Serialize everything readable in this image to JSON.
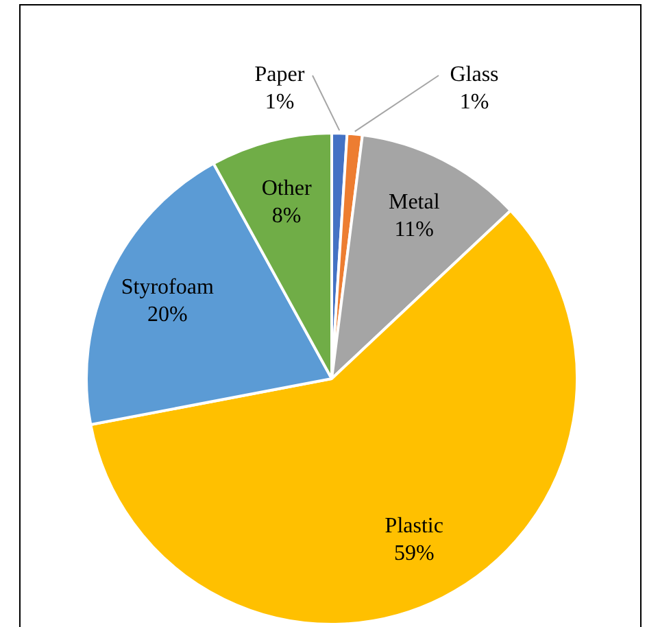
{
  "chart_data": {
    "type": "pie",
    "categories": [
      "Paper",
      "Glass",
      "Metal",
      "Plastic",
      "Styrofoam",
      "Other"
    ],
    "values": [
      1,
      1,
      11,
      59,
      20,
      8
    ],
    "value_labels": [
      "1%",
      "1%",
      "11%",
      "59%",
      "20%",
      "8%"
    ],
    "colors": [
      "#4472c4",
      "#ed7d31",
      "#a5a5a5",
      "#ffc000",
      "#5b9bd5",
      "#70ad47"
    ],
    "legend": false
  }
}
